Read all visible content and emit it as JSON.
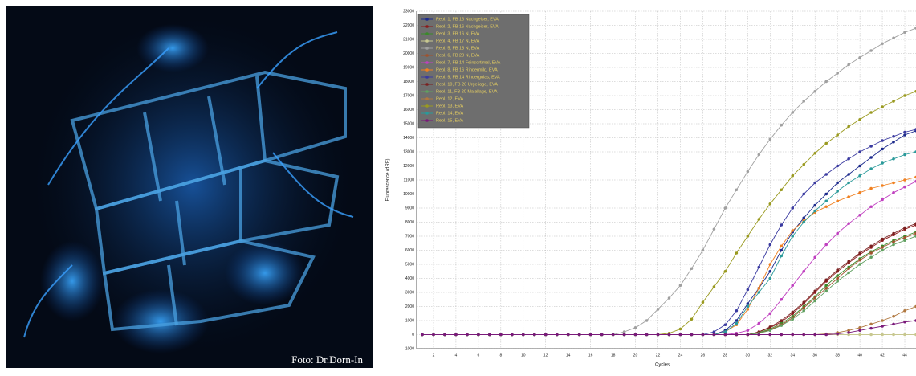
{
  "photo": {
    "caption": "Foto: Dr.Dorn-In"
  },
  "chart_data": {
    "type": "line",
    "x_label": "Cycles",
    "y_label": "Fluorescence (dRF)",
    "x": [
      1,
      2,
      3,
      4,
      5,
      6,
      7,
      8,
      9,
      10,
      11,
      12,
      13,
      14,
      15,
      16,
      17,
      18,
      19,
      20,
      21,
      22,
      23,
      24,
      25,
      26,
      27,
      28,
      29,
      30,
      31,
      32,
      33,
      34,
      35,
      36,
      37,
      38,
      39,
      40,
      41,
      42,
      43,
      44,
      45
    ],
    "xlim": [
      0.5,
      45
    ],
    "xticks": [
      2,
      4,
      6,
      8,
      10,
      12,
      14,
      16,
      18,
      20,
      22,
      24,
      26,
      28,
      30,
      32,
      34,
      36,
      38,
      40,
      42,
      44
    ],
    "ylim": [
      -1000,
      23000
    ],
    "yticks": [
      -1000,
      0,
      1000,
      2000,
      3000,
      4000,
      5000,
      6000,
      7000,
      8000,
      9000,
      10000,
      11000,
      12000,
      13000,
      14000,
      15000,
      16000,
      17000,
      18000,
      19000,
      20000,
      21000,
      22000,
      23000
    ],
    "grid": true,
    "legend": "upper left",
    "series": [
      {
        "name": "Repl. 1, FB 16 Nachgeiser, EVA",
        "color": "#1c2a8c",
        "values": [
          0,
          0,
          0,
          0,
          0,
          0,
          0,
          0,
          0,
          0,
          0,
          0,
          0,
          0,
          0,
          0,
          0,
          0,
          0,
          0,
          0,
          0,
          0,
          0,
          0,
          0,
          0,
          300,
          1000,
          2200,
          3300,
          4500,
          6000,
          7300,
          8300,
          9200,
          10000,
          10800,
          11400,
          12000,
          12600,
          13200,
          13700,
          14200,
          14500
        ]
      },
      {
        "name": "Repl. 2, FB 16 Nachgeiser, EVA",
        "color": "#8b1a1a",
        "values": [
          0,
          0,
          0,
          0,
          0,
          0,
          0,
          0,
          0,
          0,
          0,
          0,
          0,
          0,
          0,
          0,
          0,
          0,
          0,
          0,
          0,
          0,
          0,
          0,
          0,
          0,
          0,
          0,
          0,
          0,
          200,
          500,
          900,
          1500,
          2200,
          3000,
          3800,
          4500,
          5100,
          5700,
          6200,
          6700,
          7100,
          7500,
          7800
        ]
      },
      {
        "name": "Repl. 3, FB 16 N, EVA",
        "color": "#3a8a2a",
        "values": [
          0,
          0,
          0,
          0,
          0,
          0,
          0,
          0,
          0,
          0,
          0,
          0,
          0,
          0,
          0,
          0,
          0,
          0,
          0,
          0,
          0,
          0,
          0,
          0,
          0,
          0,
          0,
          0,
          0,
          0,
          150,
          400,
          800,
          1300,
          2000,
          2700,
          3500,
          4200,
          4800,
          5400,
          5900,
          6300,
          6700,
          7000,
          7300
        ]
      },
      {
        "name": "Repl. 4, FB 17 N, EVA",
        "color": "#c8c890",
        "values": [
          0,
          0,
          0,
          0,
          0,
          0,
          0,
          0,
          0,
          0,
          0,
          0,
          0,
          0,
          0,
          0,
          0,
          0,
          0,
          0,
          0,
          0,
          0,
          0,
          0,
          0,
          0,
          0,
          0,
          0,
          0,
          0,
          0,
          0,
          0,
          0,
          0,
          0,
          0,
          0,
          0,
          0,
          0,
          0,
          0
        ]
      },
      {
        "name": "Repl. 5, FB 18 N, EVA",
        "color": "#a0a0a0",
        "values": [
          0,
          0,
          0,
          0,
          0,
          0,
          0,
          0,
          0,
          0,
          0,
          0,
          0,
          0,
          0,
          0,
          0,
          0,
          200,
          500,
          1000,
          1800,
          2600,
          3500,
          4700,
          6000,
          7500,
          9000,
          10300,
          11600,
          12800,
          13900,
          14900,
          15800,
          16600,
          17300,
          18000,
          18600,
          19200,
          19700,
          20200,
          20700,
          21100,
          21500,
          21800
        ]
      },
      {
        "name": "Repl. 6, FB 20 N, EVA",
        "color": "#a0522d",
        "values": [
          0,
          0,
          0,
          0,
          0,
          0,
          0,
          0,
          0,
          0,
          0,
          0,
          0,
          0,
          0,
          0,
          0,
          0,
          0,
          0,
          0,
          0,
          0,
          0,
          0,
          0,
          0,
          0,
          0,
          0,
          100,
          350,
          700,
          1200,
          1900,
          2600,
          3300,
          4000,
          4700,
          5300,
          5800,
          6200,
          6600,
          6900,
          7200
        ]
      },
      {
        "name": "Repl. 7, FB 14 Feinsortimal, EVA",
        "color": "#c040c0",
        "values": [
          0,
          0,
          0,
          0,
          0,
          0,
          0,
          0,
          0,
          0,
          0,
          0,
          0,
          0,
          0,
          0,
          0,
          0,
          0,
          0,
          0,
          0,
          0,
          0,
          0,
          0,
          0,
          0,
          100,
          300,
          800,
          1500,
          2500,
          3500,
          4500,
          5500,
          6400,
          7200,
          7900,
          8500,
          9100,
          9600,
          10100,
          10500,
          10900
        ]
      },
      {
        "name": "Repl. 8, FB 16 Rindermild, EVA",
        "color": "#f08020",
        "values": [
          0,
          0,
          0,
          0,
          0,
          0,
          0,
          0,
          0,
          0,
          0,
          0,
          0,
          0,
          0,
          0,
          0,
          0,
          0,
          0,
          0,
          0,
          0,
          0,
          0,
          0,
          0,
          200,
          700,
          1800,
          3300,
          5000,
          6300,
          7400,
          8100,
          8700,
          9100,
          9500,
          9800,
          10100,
          10400,
          10600,
          10800,
          11000,
          11200
        ]
      },
      {
        "name": "Repl. 9, FB 14 Rindergulas, EVA",
        "color": "#3a3aa0",
        "values": [
          0,
          0,
          0,
          0,
          0,
          0,
          0,
          0,
          0,
          0,
          0,
          0,
          0,
          0,
          0,
          0,
          0,
          0,
          0,
          0,
          0,
          0,
          0,
          0,
          0,
          0,
          200,
          700,
          1700,
          3200,
          4800,
          6400,
          7800,
          9000,
          10000,
          10800,
          11400,
          12000,
          12500,
          13000,
          13400,
          13800,
          14100,
          14400,
          14600
        ]
      },
      {
        "name": "Repl. 10, FB 20 Urgeliage, EVA",
        "color": "#7a2020",
        "values": [
          0,
          0,
          0,
          0,
          0,
          0,
          0,
          0,
          0,
          0,
          0,
          0,
          0,
          0,
          0,
          0,
          0,
          0,
          0,
          0,
          0,
          0,
          0,
          0,
          0,
          0,
          0,
          0,
          0,
          0,
          200,
          550,
          1000,
          1600,
          2300,
          3100,
          3900,
          4600,
          5200,
          5800,
          6300,
          6800,
          7200,
          7600,
          7900
        ]
      },
      {
        "name": "Repl. 11, FB 20 Malallage, EVA",
        "color": "#60a060",
        "values": [
          0,
          0,
          0,
          0,
          0,
          0,
          0,
          0,
          0,
          0,
          0,
          0,
          0,
          0,
          0,
          0,
          0,
          0,
          0,
          0,
          0,
          0,
          0,
          0,
          0,
          0,
          0,
          0,
          0,
          0,
          100,
          300,
          650,
          1100,
          1700,
          2400,
          3100,
          3800,
          4400,
          5000,
          5500,
          6000,
          6400,
          6700,
          7000
        ]
      },
      {
        "name": "Repl. 12, EVA",
        "color": "#b07840",
        "values": [
          0,
          0,
          0,
          0,
          0,
          0,
          0,
          0,
          0,
          0,
          0,
          0,
          0,
          0,
          0,
          0,
          0,
          0,
          0,
          0,
          0,
          0,
          0,
          0,
          0,
          0,
          0,
          0,
          0,
          0,
          0,
          0,
          0,
          0,
          0,
          0,
          50,
          150,
          300,
          500,
          750,
          1000,
          1300,
          1700,
          2000
        ]
      },
      {
        "name": "Repl. 13, EVA",
        "color": "#9a9a20",
        "values": [
          0,
          0,
          0,
          0,
          0,
          0,
          0,
          0,
          0,
          0,
          0,
          0,
          0,
          0,
          0,
          0,
          0,
          0,
          0,
          0,
          0,
          0,
          100,
          400,
          1100,
          2300,
          3400,
          4500,
          5800,
          7000,
          8200,
          9300,
          10300,
          11300,
          12100,
          12900,
          13600,
          14200,
          14800,
          15300,
          15800,
          16200,
          16600,
          17000,
          17300
        ]
      },
      {
        "name": "Repl. 14, EVA",
        "color": "#2a9a9a",
        "values": [
          0,
          0,
          0,
          0,
          0,
          0,
          0,
          0,
          0,
          0,
          0,
          0,
          0,
          0,
          0,
          0,
          0,
          0,
          0,
          0,
          0,
          0,
          0,
          0,
          0,
          0,
          0,
          200,
          800,
          2000,
          3000,
          4000,
          5600,
          7000,
          8000,
          8800,
          9500,
          10200,
          10800,
          11300,
          11800,
          12200,
          12500,
          12800,
          13000
        ]
      },
      {
        "name": "Repl. 15, EVA",
        "color": "#7a1a7a",
        "values": [
          0,
          0,
          0,
          0,
          0,
          0,
          0,
          0,
          0,
          0,
          0,
          0,
          0,
          0,
          0,
          0,
          0,
          0,
          0,
          0,
          0,
          0,
          0,
          0,
          0,
          0,
          0,
          0,
          0,
          0,
          0,
          0,
          0,
          0,
          0,
          0,
          0,
          50,
          150,
          300,
          450,
          600,
          750,
          900,
          1000
        ]
      }
    ]
  }
}
